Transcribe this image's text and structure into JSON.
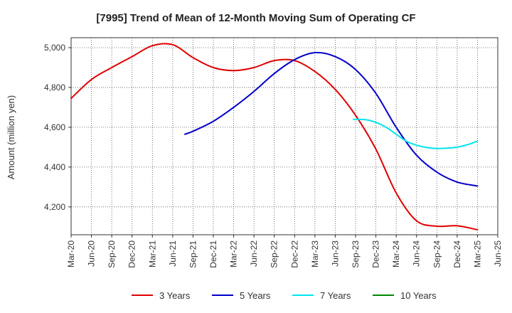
{
  "chart_data": {
    "type": "line",
    "title": "[7995]  Trend of Mean of 12-Month Moving Sum of Operating CF",
    "xlabel": "",
    "ylabel": "Amount (million yen)",
    "ylim": [
      4060,
      5050
    ],
    "yticks": [
      4200,
      4400,
      4600,
      4800,
      5000
    ],
    "ytick_labels": [
      "4,200",
      "4,400",
      "4,600",
      "4,800",
      "5,000"
    ],
    "xlim_index": [
      0,
      21
    ],
    "xtick_labels": [
      "Mar-20",
      "Jun-20",
      "Sep-20",
      "Dec-20",
      "Mar-21",
      "Jun-21",
      "Sep-21",
      "Dec-21",
      "Mar-22",
      "Jun-22",
      "Sep-22",
      "Dec-22",
      "Mar-23",
      "Jun-23",
      "Sep-23",
      "Dec-23",
      "Mar-24",
      "Jun-24",
      "Sep-24",
      "Dec-24",
      "Mar-25",
      "Jun-25"
    ],
    "grid": true,
    "legend_position": "bottom",
    "series": [
      {
        "name": "3 Years",
        "color": "#e00000",
        "points": [
          [
            0,
            4745
          ],
          [
            1,
            4840
          ],
          [
            2,
            4900
          ],
          [
            3,
            4955
          ],
          [
            4,
            5010
          ],
          [
            5,
            5015
          ],
          [
            6,
            4950
          ],
          [
            7,
            4900
          ],
          [
            8,
            4885
          ],
          [
            9,
            4900
          ],
          [
            10,
            4935
          ],
          [
            11,
            4935
          ],
          [
            12,
            4880
          ],
          [
            13,
            4790
          ],
          [
            14,
            4660
          ],
          [
            15,
            4490
          ],
          [
            16,
            4270
          ],
          [
            17,
            4130
          ],
          [
            18,
            4103
          ],
          [
            19,
            4105
          ],
          [
            20,
            4085
          ]
        ]
      },
      {
        "name": "5 Years",
        "color": "#0000cc",
        "points": [
          [
            5.6,
            4565
          ],
          [
            6,
            4580
          ],
          [
            7,
            4630
          ],
          [
            8,
            4700
          ],
          [
            9,
            4780
          ],
          [
            10,
            4870
          ],
          [
            11,
            4940
          ],
          [
            12,
            4975
          ],
          [
            13,
            4955
          ],
          [
            14,
            4890
          ],
          [
            15,
            4770
          ],
          [
            16,
            4600
          ],
          [
            17,
            4460
          ],
          [
            18,
            4375
          ],
          [
            19,
            4325
          ],
          [
            20,
            4305
          ]
        ]
      },
      {
        "name": "7 Years",
        "color": "#00e5ee",
        "points": [
          [
            13.9,
            4640
          ],
          [
            14.5,
            4638
          ],
          [
            15,
            4625
          ],
          [
            15.5,
            4600
          ],
          [
            16,
            4565
          ],
          [
            16.5,
            4530
          ],
          [
            17,
            4510
          ],
          [
            17.5,
            4498
          ],
          [
            18,
            4493
          ],
          [
            18.5,
            4495
          ],
          [
            19,
            4500
          ],
          [
            19.5,
            4512
          ],
          [
            20,
            4530
          ]
        ]
      },
      {
        "name": "10 Years",
        "color": "#008800",
        "points": []
      }
    ]
  }
}
